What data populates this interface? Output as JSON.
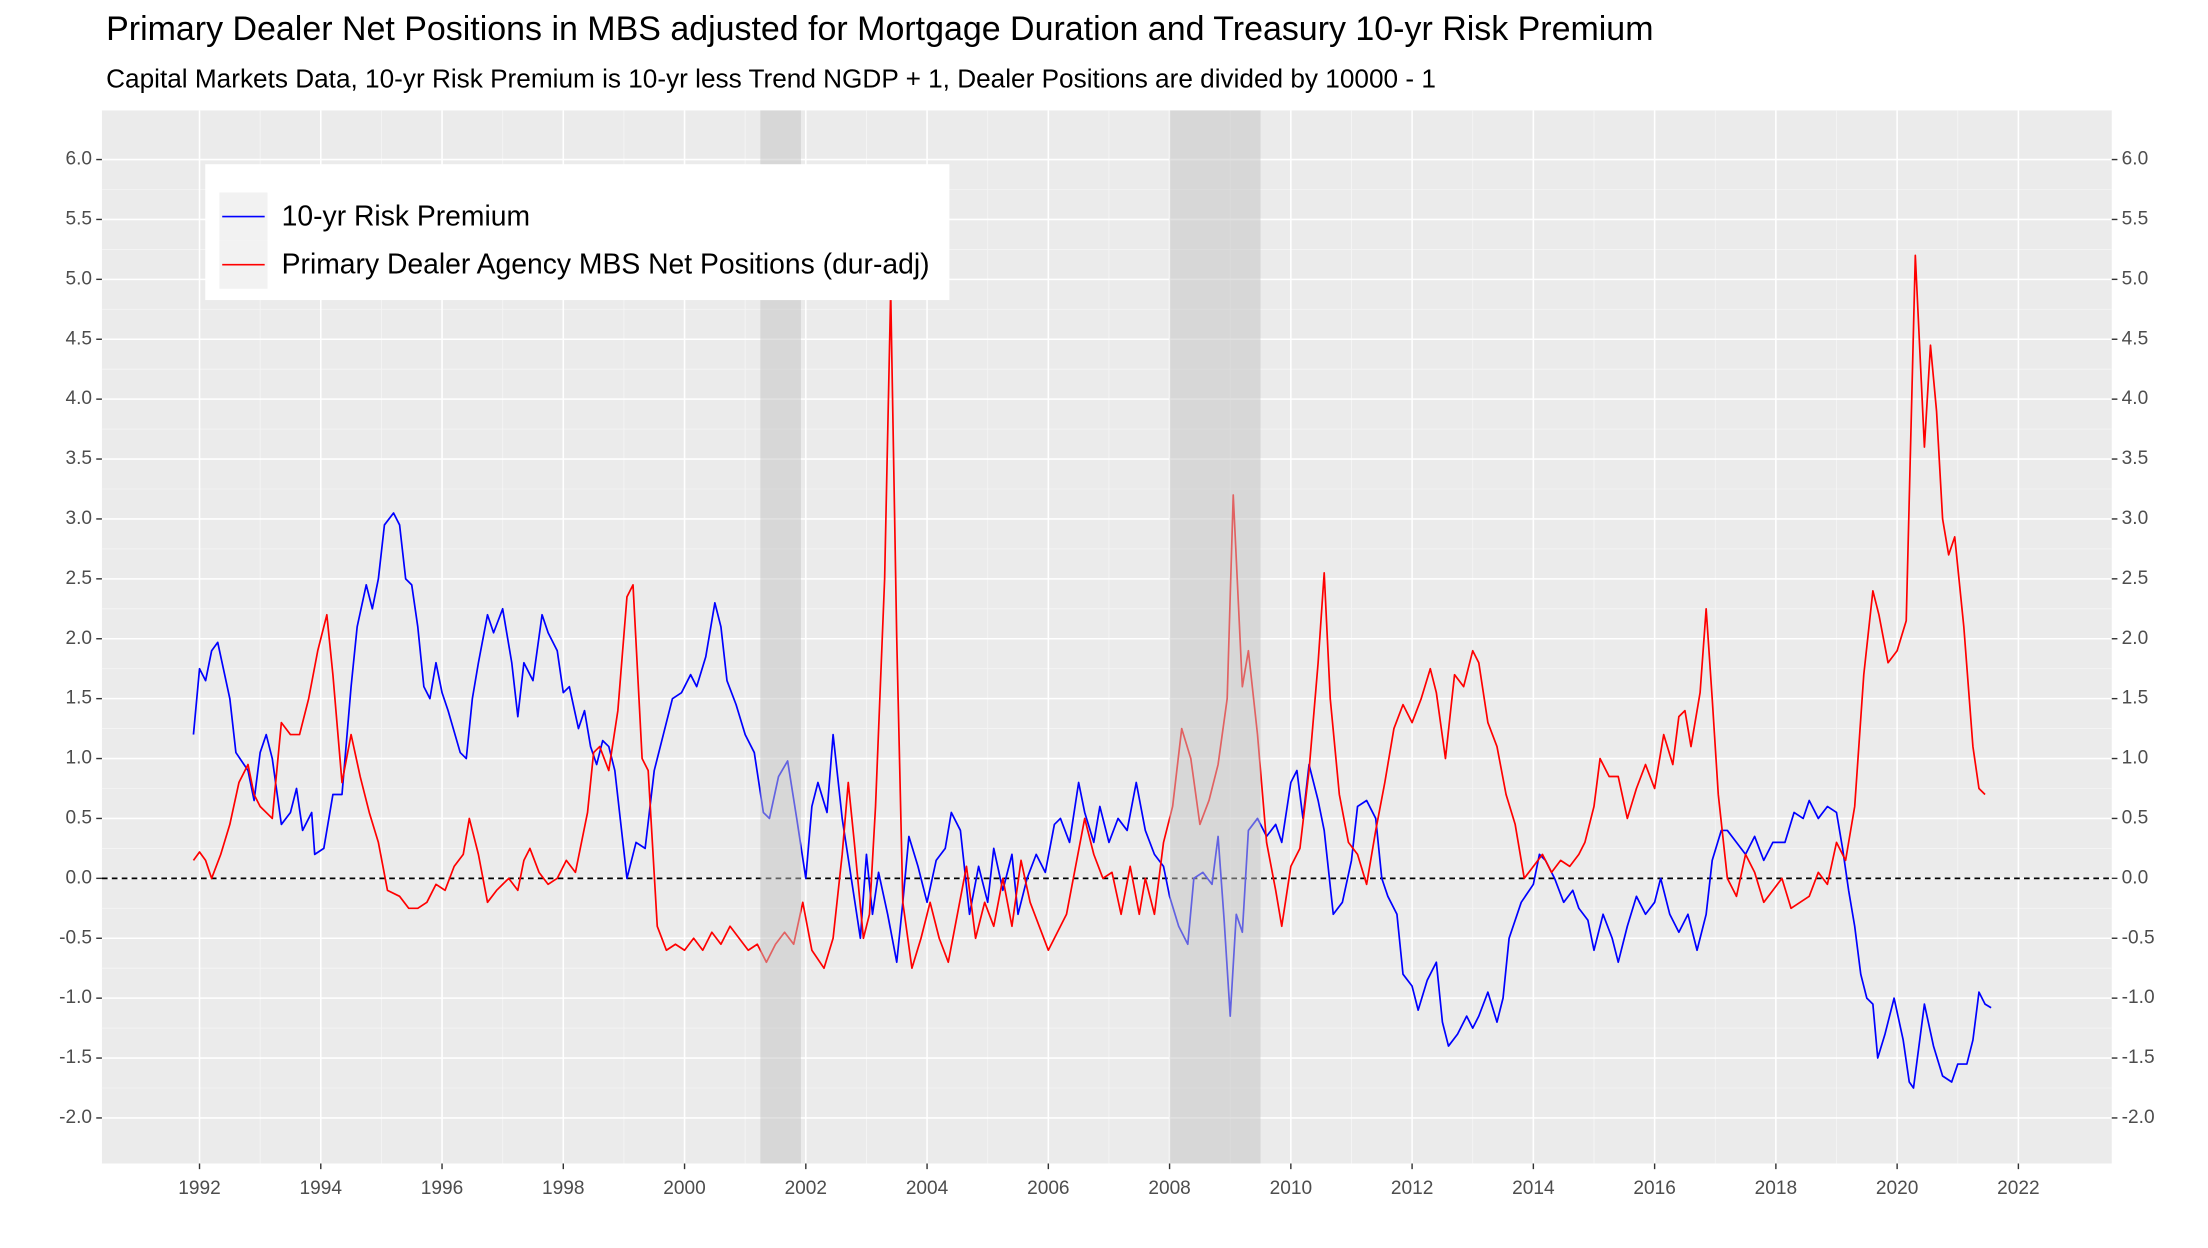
{
  "chart_data": {
    "type": "line",
    "title": "Primary Dealer Net Positions in MBS adjusted for Mortgage Duration and Treasury 10-yr Risk Premium",
    "subtitle": "Capital Markets Data, 10-yr Risk Premium is 10-yr less Trend NGDP + 1, Dealer Positions are divided by 10000 - 1",
    "xlim": [
      1990.39,
      2023.54
    ],
    "xticks": [
      1992,
      1994,
      1996,
      1998,
      2000,
      2002,
      2004,
      2006,
      2008,
      2010,
      2012,
      2014,
      2016,
      2018,
      2020,
      2022
    ],
    "ylim": [
      -2.38,
      6.41
    ],
    "yticks": [
      {
        "value": -2,
        "label": "-2.0"
      },
      -1.5,
      {
        "value": -1,
        "label": "-1.0"
      },
      -0.5,
      {
        "value": 0,
        "label": "0.0"
      },
      0.5,
      {
        "value": 1,
        "label": "1.0"
      },
      1.5,
      {
        "value": 2,
        "label": "2.0"
      },
      2.5,
      {
        "value": 3,
        "label": "3.0"
      },
      3.5,
      {
        "value": 4,
        "label": "4.0"
      },
      4.5,
      {
        "value": 5,
        "label": "5.0"
      },
      5.5,
      {
        "value": 6,
        "label": "6.0"
      }
    ],
    "y2lim": [
      -2.38,
      6.41
    ],
    "y2ticks": [
      {
        "value": -2,
        "label": "-2.0"
      },
      -1.5,
      {
        "value": -1,
        "label": "-1.0"
      },
      -0.5,
      {
        "value": 0,
        "label": "0.0"
      },
      0.5,
      {
        "value": 1,
        "label": "1.0"
      },
      1.5,
      {
        "value": 2,
        "label": "2.0"
      },
      2.5,
      {
        "value": 3,
        "label": "3.0"
      },
      3.5,
      {
        "value": 4,
        "label": "4.0"
      },
      4.5,
      {
        "value": 5,
        "label": "5.0"
      },
      5.5,
      {
        "value": 6,
        "label": "6.0"
      }
    ],
    "grid": true,
    "hline": 0,
    "legend": "top-left",
    "shaded_periods": [
      [
        2001.25,
        2001.92
      ],
      [
        2008.0,
        2009.5
      ]
    ],
    "series": [
      {
        "name": "10-yr Risk Premium",
        "color": "#0000ff",
        "x": [
          1991.9,
          1992.0,
          1992.1,
          1992.2,
          1992.3,
          1992.5,
          1992.6,
          1992.8,
          1992.9,
          1993.0,
          1993.1,
          1993.2,
          1993.35,
          1993.5,
          1993.6,
          1993.7,
          1993.85,
          1993.9,
          1994.05,
          1994.2,
          1994.35,
          1994.5,
          1994.6,
          1994.75,
          1994.85,
          1994.95,
          1995.05,
          1995.2,
          1995.3,
          1995.4,
          1995.5,
          1995.6,
          1995.7,
          1995.8,
          1995.9,
          1996.0,
          1996.1,
          1996.3,
          1996.4,
          1996.5,
          1996.6,
          1996.75,
          1996.85,
          1997.0,
          1997.15,
          1997.25,
          1997.35,
          1997.5,
          1997.65,
          1997.75,
          1997.9,
          1998.0,
          1998.1,
          1998.25,
          1998.35,
          1998.45,
          1998.55,
          1998.65,
          1998.75,
          1998.85,
          1998.95,
          1999.05,
          1999.2,
          1999.35,
          1999.5,
          1999.65,
          1999.8,
          1999.95,
          2000.1,
          2000.2,
          2000.35,
          2000.5,
          2000.6,
          2000.7,
          2000.85,
          2001.0,
          2001.15,
          2001.3,
          2001.4,
          2001.55,
          2001.7,
          2001.85,
          2002.0,
          2002.1,
          2002.2,
          2002.35,
          2002.45,
          2002.6,
          2002.75,
          2002.9,
          2003.0,
          2003.1,
          2003.2,
          2003.35,
          2003.5,
          2003.6,
          2003.7,
          2003.85,
          2004.0,
          2004.15,
          2004.3,
          2004.4,
          2004.55,
          2004.7,
          2004.85,
          2005.0,
          2005.1,
          2005.25,
          2005.4,
          2005.5,
          2005.65,
          2005.8,
          2005.95,
          2006.1,
          2006.2,
          2006.35,
          2006.5,
          2006.6,
          2006.75,
          2006.85,
          2007.0,
          2007.15,
          2007.3,
          2007.45,
          2007.6,
          2007.75,
          2007.9,
          2008.0,
          2008.15,
          2008.3,
          2008.4,
          2008.55,
          2008.7,
          2008.8,
          2008.9,
          2009.0,
          2009.1,
          2009.2,
          2009.3,
          2009.45,
          2009.6,
          2009.75,
          2009.85,
          2010.0,
          2010.1,
          2010.2,
          2010.3,
          2010.45,
          2010.55,
          2010.7,
          2010.85,
          2011.0,
          2011.1,
          2011.25,
          2011.4,
          2011.5,
          2011.6,
          2011.75,
          2011.85,
          2012.0,
          2012.1,
          2012.25,
          2012.4,
          2012.5,
          2012.6,
          2012.75,
          2012.9,
          2013.0,
          2013.1,
          2013.25,
          2013.4,
          2013.5,
          2013.6,
          2013.8,
          2014.0,
          2014.1,
          2014.2,
          2014.35,
          2014.5,
          2014.65,
          2014.75,
          2014.9,
          2015.0,
          2015.15,
          2015.3,
          2015.4,
          2015.55,
          2015.7,
          2015.85,
          2016.0,
          2016.1,
          2016.25,
          2016.4,
          2016.55,
          2016.7,
          2016.85,
          2016.95,
          2017.1,
          2017.2,
          2017.35,
          2017.5,
          2017.65,
          2017.8,
          2017.95,
          2018.15,
          2018.3,
          2018.45,
          2018.55,
          2018.7,
          2018.85,
          2019.0,
          2019.1,
          2019.2,
          2019.3,
          2019.4,
          2019.5,
          2019.6,
          2019.68,
          2019.8,
          2019.95,
          2020.1,
          2020.2,
          2020.27,
          2020.45,
          2020.6,
          2020.75,
          2020.9,
          2021.0,
          2021.15,
          2021.25,
          2021.35,
          2021.45,
          2021.55
        ],
        "values": [
          1.2,
          1.75,
          1.65,
          1.9,
          1.97,
          1.5,
          1.05,
          0.9,
          0.65,
          1.05,
          1.2,
          1.0,
          0.45,
          0.55,
          0.75,
          0.4,
          0.55,
          0.2,
          0.25,
          0.7,
          0.7,
          1.6,
          2.1,
          2.45,
          2.25,
          2.5,
          2.95,
          3.05,
          2.95,
          2.5,
          2.45,
          2.1,
          1.6,
          1.5,
          1.8,
          1.55,
          1.4,
          1.05,
          1.0,
          1.5,
          1.8,
          2.2,
          2.05,
          2.25,
          1.8,
          1.35,
          1.8,
          1.65,
          2.2,
          2.05,
          1.9,
          1.55,
          1.6,
          1.25,
          1.4,
          1.1,
          0.95,
          1.15,
          1.1,
          0.9,
          0.45,
          0.0,
          0.3,
          0.25,
          0.9,
          1.2,
          1.5,
          1.55,
          1.7,
          1.6,
          1.85,
          2.3,
          2.1,
          1.65,
          1.45,
          1.2,
          1.05,
          0.55,
          0.5,
          0.85,
          0.98,
          0.5,
          0.0,
          0.6,
          0.8,
          0.55,
          1.2,
          0.5,
          0.0,
          -0.5,
          0.2,
          -0.3,
          0.05,
          -0.3,
          -0.7,
          -0.2,
          0.35,
          0.1,
          -0.2,
          0.15,
          0.25,
          0.55,
          0.4,
          -0.3,
          0.1,
          -0.2,
          0.25,
          -0.1,
          0.2,
          -0.3,
          0.0,
          0.2,
          0.05,
          0.45,
          0.5,
          0.3,
          0.8,
          0.55,
          0.3,
          0.6,
          0.3,
          0.5,
          0.4,
          0.8,
          0.4,
          0.2,
          0.1,
          -0.15,
          -0.4,
          -0.55,
          0.0,
          0.05,
          -0.05,
          0.35,
          -0.35,
          -1.15,
          -0.3,
          -0.45,
          0.4,
          0.5,
          0.35,
          0.45,
          0.3,
          0.8,
          0.9,
          0.5,
          0.95,
          0.65,
          0.4,
          -0.3,
          -0.2,
          0.15,
          0.6,
          0.65,
          0.5,
          0.0,
          -0.15,
          -0.3,
          -0.8,
          -0.9,
          -1.1,
          -0.85,
          -0.7,
          -1.2,
          -1.4,
          -1.3,
          -1.15,
          -1.25,
          -1.15,
          -0.95,
          -1.2,
          -1.0,
          -0.5,
          -0.2,
          -0.05,
          0.2,
          0.15,
          0.0,
          -0.2,
          -0.1,
          -0.25,
          -0.35,
          -0.6,
          -0.3,
          -0.5,
          -0.7,
          -0.4,
          -0.15,
          -0.3,
          -0.2,
          0.0,
          -0.3,
          -0.45,
          -0.3,
          -0.6,
          -0.3,
          0.15,
          0.4,
          0.4,
          0.3,
          0.2,
          0.35,
          0.15,
          0.3,
          0.3,
          0.55,
          0.5,
          0.65,
          0.5,
          0.6,
          0.55,
          0.25,
          -0.1,
          -0.4,
          -0.8,
          -1.0,
          -1.05,
          -1.5,
          -1.3,
          -1.0,
          -1.35,
          -1.7,
          -1.75,
          -1.05,
          -1.4,
          -1.65,
          -1.7,
          -1.55,
          -1.55,
          -1.35,
          -0.95,
          -1.05,
          -1.08
        ]
      },
      {
        "name": "Primary Dealer Agency MBS Net Positions (dur-adj)",
        "color": "#ff0000",
        "x": [
          1991.9,
          1992.0,
          1992.1,
          1992.2,
          1992.35,
          1992.5,
          1992.65,
          1992.8,
          1992.9,
          1993.0,
          1993.2,
          1993.35,
          1993.5,
          1993.65,
          1993.8,
          1993.95,
          1994.1,
          1994.2,
          1994.35,
          1994.5,
          1994.65,
          1994.8,
          1994.95,
          1995.1,
          1995.3,
          1995.45,
          1995.6,
          1995.75,
          1995.9,
          1996.05,
          1996.2,
          1996.35,
          1996.45,
          1996.6,
          1996.75,
          1996.9,
          1997.1,
          1997.25,
          1997.35,
          1997.45,
          1997.6,
          1997.75,
          1997.9,
          1998.05,
          1998.2,
          1998.4,
          1998.5,
          1998.6,
          1998.75,
          1998.9,
          1999.05,
          1999.15,
          1999.3,
          1999.4,
          1999.55,
          1999.7,
          1999.85,
          2000.0,
          2000.15,
          2000.3,
          2000.45,
          2000.6,
          2000.75,
          2000.9,
          2001.05,
          2001.2,
          2001.35,
          2001.5,
          2001.65,
          2001.8,
          2001.95,
          2002.1,
          2002.3,
          2002.45,
          2002.6,
          2002.7,
          2002.8,
          2002.95,
          2003.05,
          2003.15,
          2003.3,
          2003.4,
          2003.5,
          2003.6,
          2003.75,
          2003.9,
          2004.05,
          2004.2,
          2004.35,
          2004.5,
          2004.65,
          2004.8,
          2004.95,
          2005.1,
          2005.25,
          2005.4,
          2005.55,
          2005.7,
          2005.85,
          2006.0,
          2006.15,
          2006.3,
          2006.45,
          2006.6,
          2006.75,
          2006.9,
          2007.05,
          2007.2,
          2007.35,
          2007.5,
          2007.6,
          2007.75,
          2007.9,
          2008.05,
          2008.2,
          2008.35,
          2008.5,
          2008.65,
          2008.8,
          2008.95,
          2009.05,
          2009.2,
          2009.3,
          2009.45,
          2009.6,
          2009.75,
          2009.85,
          2010.0,
          2010.15,
          2010.3,
          2010.45,
          2010.55,
          2010.65,
          2010.8,
          2010.95,
          2011.1,
          2011.25,
          2011.4,
          2011.55,
          2011.7,
          2011.85,
          2012.0,
          2012.15,
          2012.3,
          2012.4,
          2012.55,
          2012.7,
          2012.85,
          2013.0,
          2013.1,
          2013.25,
          2013.4,
          2013.55,
          2013.7,
          2013.85,
          2014.0,
          2014.15,
          2014.3,
          2014.45,
          2014.6,
          2014.75,
          2014.85,
          2015.0,
          2015.1,
          2015.25,
          2015.4,
          2015.55,
          2015.7,
          2015.85,
          2016.0,
          2016.15,
          2016.3,
          2016.4,
          2016.5,
          2016.6,
          2016.75,
          2016.85,
          2016.95,
          2017.05,
          2017.2,
          2017.35,
          2017.5,
          2017.65,
          2017.8,
          2017.95,
          2018.1,
          2018.25,
          2018.4,
          2018.55,
          2018.7,
          2018.85,
          2019.0,
          2019.15,
          2019.3,
          2019.45,
          2019.6,
          2019.7,
          2019.85,
          2020.0,
          2020.15,
          2020.3,
          2020.45,
          2020.55,
          2020.65,
          2020.75,
          2020.85,
          2020.95,
          2021.1,
          2021.25,
          2021.35,
          2021.45
        ],
        "values": [
          0.15,
          0.22,
          0.15,
          0.0,
          0.2,
          0.45,
          0.8,
          0.95,
          0.7,
          0.6,
          0.5,
          1.3,
          1.2,
          1.2,
          1.5,
          1.9,
          2.2,
          1.7,
          0.8,
          1.2,
          0.85,
          0.55,
          0.3,
          -0.1,
          -0.15,
          -0.25,
          -0.25,
          -0.2,
          -0.05,
          -0.1,
          0.1,
          0.2,
          0.5,
          0.2,
          -0.2,
          -0.1,
          0.0,
          -0.1,
          0.15,
          0.25,
          0.05,
          -0.05,
          0.0,
          0.15,
          0.05,
          0.55,
          1.05,
          1.1,
          0.9,
          1.4,
          2.35,
          2.45,
          1.0,
          0.9,
          -0.4,
          -0.6,
          -0.55,
          -0.6,
          -0.5,
          -0.6,
          -0.45,
          -0.55,
          -0.4,
          -0.5,
          -0.6,
          -0.55,
          -0.7,
          -0.55,
          -0.45,
          -0.55,
          -0.2,
          -0.6,
          -0.75,
          -0.5,
          0.2,
          0.8,
          0.3,
          -0.5,
          -0.3,
          0.6,
          2.5,
          4.9,
          2.0,
          -0.2,
          -0.75,
          -0.5,
          -0.2,
          -0.5,
          -0.7,
          -0.3,
          0.1,
          -0.5,
          -0.2,
          -0.4,
          0.0,
          -0.4,
          0.15,
          -0.2,
          -0.4,
          -0.6,
          -0.45,
          -0.3,
          0.1,
          0.5,
          0.2,
          0.0,
          0.05,
          -0.3,
          0.1,
          -0.3,
          0.0,
          -0.3,
          0.3,
          0.6,
          1.25,
          1.0,
          0.45,
          0.65,
          0.95,
          1.5,
          3.2,
          1.6,
          1.9,
          1.2,
          0.3,
          -0.1,
          -0.4,
          0.1,
          0.25,
          0.9,
          1.8,
          2.55,
          1.5,
          0.7,
          0.3,
          0.2,
          -0.05,
          0.4,
          0.8,
          1.25,
          1.45,
          1.3,
          1.5,
          1.75,
          1.55,
          1.0,
          1.7,
          1.6,
          1.9,
          1.8,
          1.3,
          1.1,
          0.7,
          0.45,
          0.0,
          0.1,
          0.2,
          0.05,
          0.15,
          0.1,
          0.2,
          0.3,
          0.6,
          1.0,
          0.85,
          0.85,
          0.5,
          0.75,
          0.95,
          0.75,
          1.2,
          0.95,
          1.35,
          1.4,
          1.1,
          1.55,
          2.25,
          1.5,
          0.7,
          0.0,
          -0.15,
          0.2,
          0.05,
          -0.2,
          -0.1,
          0.0,
          -0.25,
          -0.2,
          -0.15,
          0.05,
          -0.05,
          0.3,
          0.15,
          0.6,
          1.7,
          2.4,
          2.2,
          1.8,
          1.9,
          2.15,
          5.2,
          3.6,
          4.45,
          3.9,
          3.0,
          2.7,
          2.85,
          2.1,
          1.1,
          0.75,
          0.7
        ]
      }
    ]
  }
}
